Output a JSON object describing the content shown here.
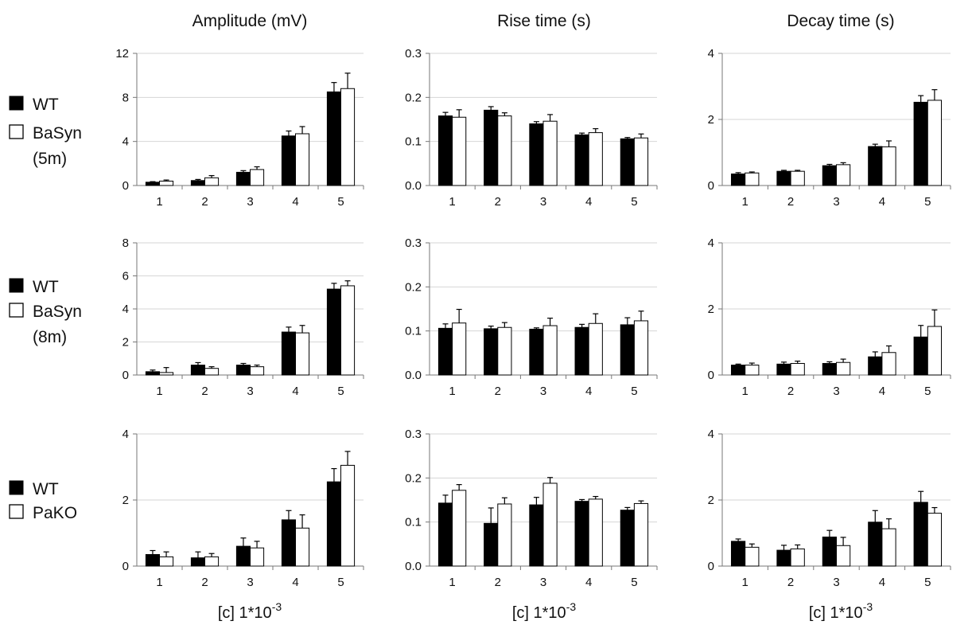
{
  "column_titles": [
    "Amplitude (mV)",
    "Rise time (s)",
    "Decay time (s)"
  ],
  "x_label_base": "[c] 1*10",
  "x_label_exp": "-3",
  "legends": [
    {
      "wt": "WT",
      "other": [
        "BaSyn",
        "(5m)"
      ]
    },
    {
      "wt": "WT",
      "other": [
        "BaSyn",
        "(8m)"
      ]
    },
    {
      "wt": "WT",
      "other": [
        "PaKO"
      ]
    }
  ],
  "colors": {
    "wt": "#000000",
    "other": "#ffffff",
    "grid": "#d6d6d6",
    "axis": "#777777"
  },
  "chart_data": [
    {
      "type": "bar",
      "row": 0,
      "col": 0,
      "categories": [
        "1",
        "2",
        "3",
        "4",
        "5"
      ],
      "ylim": [
        0,
        12
      ],
      "yticks": [
        "0",
        "4",
        "8",
        "12"
      ],
      "ytick_values": [
        0,
        4,
        8,
        12
      ],
      "series": [
        {
          "name": "WT",
          "values": [
            0.3,
            0.45,
            1.2,
            4.5,
            8.5
          ],
          "errors": [
            0.05,
            0.1,
            0.15,
            0.45,
            0.85
          ]
        },
        {
          "name": "BaSyn (5m)",
          "values": [
            0.4,
            0.7,
            1.45,
            4.7,
            8.8
          ],
          "errors": [
            0.1,
            0.2,
            0.25,
            0.65,
            1.4
          ]
        }
      ]
    },
    {
      "type": "bar",
      "row": 0,
      "col": 1,
      "categories": [
        "1",
        "2",
        "3",
        "4",
        "5"
      ],
      "ylim": [
        0,
        0.3
      ],
      "yticks": [
        "0.0",
        "0.1",
        "0.2",
        "0.3"
      ],
      "ytick_values": [
        0,
        0.1,
        0.2,
        0.3
      ],
      "series": [
        {
          "name": "WT",
          "values": [
            0.158,
            0.171,
            0.14,
            0.115,
            0.106
          ],
          "errors": [
            0.008,
            0.008,
            0.005,
            0.004,
            0.003
          ]
        },
        {
          "name": "BaSyn (5m)",
          "values": [
            0.155,
            0.158,
            0.146,
            0.12,
            0.108
          ],
          "errors": [
            0.017,
            0.007,
            0.015,
            0.009,
            0.009
          ]
        }
      ]
    },
    {
      "type": "bar",
      "row": 0,
      "col": 2,
      "categories": [
        "1",
        "2",
        "3",
        "4",
        "5"
      ],
      "ylim": [
        0,
        4
      ],
      "yticks": [
        "0",
        "2",
        "4"
      ],
      "ytick_values": [
        0,
        2,
        4
      ],
      "series": [
        {
          "name": "WT",
          "values": [
            0.35,
            0.43,
            0.6,
            1.18,
            2.52
          ],
          "errors": [
            0.04,
            0.03,
            0.04,
            0.07,
            0.2
          ]
        },
        {
          "name": "BaSyn (5m)",
          "values": [
            0.38,
            0.43,
            0.63,
            1.17,
            2.58
          ],
          "errors": [
            0.03,
            0.03,
            0.06,
            0.18,
            0.32
          ]
        }
      ]
    },
    {
      "type": "bar",
      "row": 1,
      "col": 0,
      "categories": [
        "1",
        "2",
        "3",
        "4",
        "5"
      ],
      "ylim": [
        0,
        8
      ],
      "yticks": [
        "0",
        "2",
        "4",
        "6",
        "8"
      ],
      "ytick_values": [
        0,
        2,
        4,
        6,
        8
      ],
      "series": [
        {
          "name": "WT",
          "values": [
            0.2,
            0.6,
            0.6,
            2.6,
            5.2
          ],
          "errors": [
            0.1,
            0.15,
            0.1,
            0.3,
            0.35
          ]
        },
        {
          "name": "BaSyn (8m)",
          "values": [
            0.15,
            0.4,
            0.5,
            2.55,
            5.4
          ],
          "errors": [
            0.3,
            0.1,
            0.1,
            0.45,
            0.3
          ]
        }
      ]
    },
    {
      "type": "bar",
      "row": 1,
      "col": 1,
      "categories": [
        "1",
        "2",
        "3",
        "4",
        "5"
      ],
      "ylim": [
        0,
        0.3
      ],
      "yticks": [
        "0.0",
        "0.1",
        "0.2",
        "0.3"
      ],
      "ytick_values": [
        0,
        0.1,
        0.2,
        0.3
      ],
      "series": [
        {
          "name": "WT",
          "values": [
            0.106,
            0.105,
            0.104,
            0.108,
            0.114
          ],
          "errors": [
            0.01,
            0.006,
            0.003,
            0.007,
            0.016
          ]
        },
        {
          "name": "BaSyn (8m)",
          "values": [
            0.118,
            0.108,
            0.112,
            0.117,
            0.123
          ],
          "errors": [
            0.031,
            0.011,
            0.017,
            0.022,
            0.022
          ]
        }
      ]
    },
    {
      "type": "bar",
      "row": 1,
      "col": 2,
      "categories": [
        "1",
        "2",
        "3",
        "4",
        "5"
      ],
      "ylim": [
        0,
        4
      ],
      "yticks": [
        "0",
        "2",
        "4"
      ],
      "ytick_values": [
        0,
        2,
        4
      ],
      "series": [
        {
          "name": "WT",
          "values": [
            0.3,
            0.33,
            0.35,
            0.55,
            1.15
          ],
          "errors": [
            0.03,
            0.06,
            0.05,
            0.15,
            0.35
          ]
        },
        {
          "name": "BaSyn (8m)",
          "values": [
            0.3,
            0.35,
            0.38,
            0.68,
            1.47
          ],
          "errors": [
            0.06,
            0.07,
            0.1,
            0.2,
            0.5
          ]
        }
      ]
    },
    {
      "type": "bar",
      "row": 2,
      "col": 0,
      "categories": [
        "1",
        "2",
        "3",
        "4",
        "5"
      ],
      "ylim": [
        0,
        4
      ],
      "yticks": [
        "0",
        "2",
        "4"
      ],
      "ytick_values": [
        0,
        2,
        4
      ],
      "series": [
        {
          "name": "WT",
          "values": [
            0.35,
            0.25,
            0.6,
            1.4,
            2.55
          ],
          "errors": [
            0.12,
            0.18,
            0.25,
            0.28,
            0.4
          ]
        },
        {
          "name": "PaKO",
          "values": [
            0.28,
            0.28,
            0.55,
            1.15,
            3.05
          ],
          "errors": [
            0.15,
            0.1,
            0.2,
            0.4,
            0.42
          ]
        }
      ]
    },
    {
      "type": "bar",
      "row": 2,
      "col": 1,
      "categories": [
        "1",
        "2",
        "3",
        "4",
        "5"
      ],
      "ylim": [
        0,
        0.3
      ],
      "yticks": [
        "0.0",
        "0.1",
        "0.2",
        "0.3"
      ],
      "ytick_values": [
        0,
        0.1,
        0.2,
        0.3
      ],
      "series": [
        {
          "name": "WT",
          "values": [
            0.143,
            0.097,
            0.139,
            0.147,
            0.127
          ],
          "errors": [
            0.018,
            0.035,
            0.017,
            0.004,
            0.006
          ]
        },
        {
          "name": "PaKO",
          "values": [
            0.172,
            0.141,
            0.188,
            0.152,
            0.142
          ],
          "errors": [
            0.013,
            0.014,
            0.013,
            0.006,
            0.006
          ]
        }
      ]
    },
    {
      "type": "bar",
      "row": 2,
      "col": 2,
      "categories": [
        "1",
        "2",
        "3",
        "4",
        "5"
      ],
      "ylim": [
        0,
        4
      ],
      "yticks": [
        "0",
        "2",
        "4"
      ],
      "ytick_values": [
        0,
        2,
        4
      ],
      "series": [
        {
          "name": "WT",
          "values": [
            0.75,
            0.48,
            0.88,
            1.33,
            1.93
          ],
          "errors": [
            0.07,
            0.15,
            0.2,
            0.35,
            0.33
          ]
        },
        {
          "name": "PaKO",
          "values": [
            0.57,
            0.52,
            0.62,
            1.13,
            1.6
          ],
          "errors": [
            0.1,
            0.12,
            0.25,
            0.3,
            0.17
          ]
        }
      ]
    }
  ]
}
